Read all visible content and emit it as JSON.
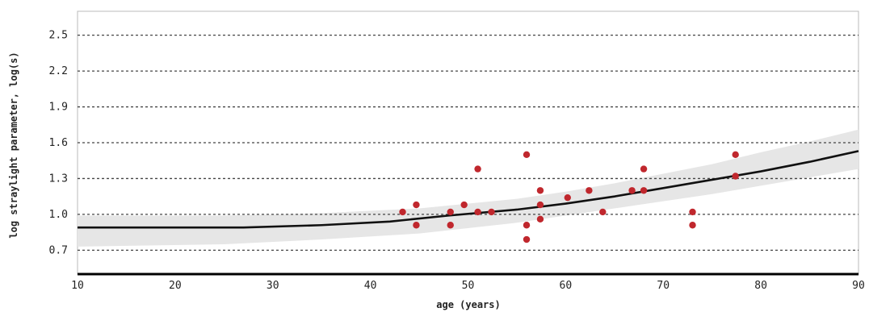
{
  "chart_data": {
    "type": "scatter",
    "xlabel": "age (years)",
    "ylabel": "log straylight parameter, log(s)",
    "xlim": [
      10,
      90
    ],
    "ylim": [
      0.5,
      2.7
    ],
    "x_ticks": [
      10,
      20,
      30,
      40,
      50,
      60,
      70,
      80,
      90
    ],
    "y_ticks": [
      0.7,
      1.0,
      1.3,
      1.6,
      1.9,
      2.2,
      2.5
    ],
    "x_tick_labels": [
      "10",
      "20",
      "30",
      "40",
      "50",
      "60",
      "70",
      "80",
      "90"
    ],
    "y_tick_labels": [
      "0.7",
      "1.0",
      "1.3",
      "1.6",
      "1.9",
      "2.2",
      "2.5"
    ],
    "grid": "horizontal dotted",
    "colors": {
      "points": "#c0272d",
      "curve": "#111111",
      "band": "#e6e6e6",
      "grid": "#444444"
    },
    "points": [
      {
        "x": 43.3,
        "y": 1.02
      },
      {
        "x": 44.7,
        "y": 1.08
      },
      {
        "x": 44.7,
        "y": 0.91
      },
      {
        "x": 48.2,
        "y": 1.02
      },
      {
        "x": 48.2,
        "y": 0.91
      },
      {
        "x": 49.6,
        "y": 1.08
      },
      {
        "x": 51.0,
        "y": 1.38
      },
      {
        "x": 51.0,
        "y": 1.02
      },
      {
        "x": 52.4,
        "y": 1.02
      },
      {
        "x": 56.0,
        "y": 1.5
      },
      {
        "x": 56.0,
        "y": 0.91
      },
      {
        "x": 56.0,
        "y": 0.79
      },
      {
        "x": 57.4,
        "y": 1.2
      },
      {
        "x": 57.4,
        "y": 1.08
      },
      {
        "x": 57.4,
        "y": 0.96
      },
      {
        "x": 60.2,
        "y": 1.14
      },
      {
        "x": 62.4,
        "y": 1.2
      },
      {
        "x": 63.8,
        "y": 1.02
      },
      {
        "x": 66.8,
        "y": 1.2
      },
      {
        "x": 68.0,
        "y": 1.38
      },
      {
        "x": 68.0,
        "y": 1.2
      },
      {
        "x": 73.0,
        "y": 1.02
      },
      {
        "x": 73.0,
        "y": 0.91
      },
      {
        "x": 77.4,
        "y": 1.5
      },
      {
        "x": 77.4,
        "y": 1.32
      }
    ],
    "fit_curve": [
      {
        "x": 10,
        "y": 0.89
      },
      {
        "x": 20,
        "y": 0.89
      },
      {
        "x": 27,
        "y": 0.89
      },
      {
        "x": 35,
        "y": 0.91
      },
      {
        "x": 42,
        "y": 0.94
      },
      {
        "x": 48,
        "y": 0.99
      },
      {
        "x": 55,
        "y": 1.04
      },
      {
        "x": 60,
        "y": 1.09
      },
      {
        "x": 65,
        "y": 1.15
      },
      {
        "x": 70,
        "y": 1.22
      },
      {
        "x": 75,
        "y": 1.29
      },
      {
        "x": 80,
        "y": 1.36
      },
      {
        "x": 85,
        "y": 1.44
      },
      {
        "x": 90,
        "y": 1.53
      }
    ],
    "band_upper": [
      {
        "x": 10,
        "y": 0.99
      },
      {
        "x": 25,
        "y": 0.99
      },
      {
        "x": 35,
        "y": 1.01
      },
      {
        "x": 45,
        "y": 1.05
      },
      {
        "x": 55,
        "y": 1.13
      },
      {
        "x": 60,
        "y": 1.19
      },
      {
        "x": 65,
        "y": 1.26
      },
      {
        "x": 70,
        "y": 1.34
      },
      {
        "x": 75,
        "y": 1.42
      },
      {
        "x": 80,
        "y": 1.52
      },
      {
        "x": 85,
        "y": 1.61
      },
      {
        "x": 90,
        "y": 1.71
      }
    ],
    "band_lower": [
      {
        "x": 10,
        "y": 0.73
      },
      {
        "x": 25,
        "y": 0.75
      },
      {
        "x": 35,
        "y": 0.79
      },
      {
        "x": 45,
        "y": 0.84
      },
      {
        "x": 55,
        "y": 0.93
      },
      {
        "x": 60,
        "y": 0.99
      },
      {
        "x": 65,
        "y": 1.05
      },
      {
        "x": 70,
        "y": 1.11
      },
      {
        "x": 75,
        "y": 1.17
      },
      {
        "x": 80,
        "y": 1.24
      },
      {
        "x": 85,
        "y": 1.31
      },
      {
        "x": 90,
        "y": 1.38
      }
    ]
  }
}
